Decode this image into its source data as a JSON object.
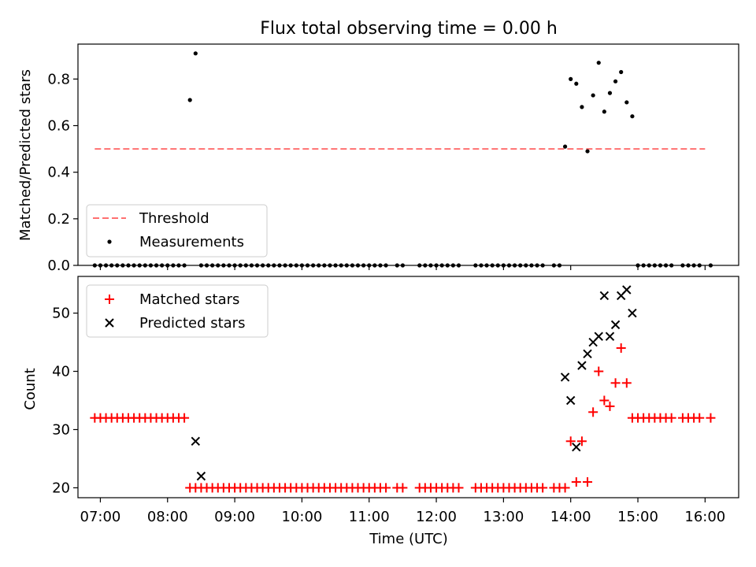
{
  "chart_data": [
    {
      "type": "scatter",
      "title": "Flux total observing time = 0.00 h",
      "xlabel": "",
      "ylabel": "Matched/Predicted stars",
      "ylim": [
        0.0,
        0.95
      ],
      "yticks": [
        0.0,
        0.2,
        0.4,
        0.6,
        0.8
      ],
      "ytick_labels": [
        "0.0",
        "0.2",
        "0.4",
        "0.6",
        "0.8"
      ],
      "xlim": [
        "06:40",
        "16:30"
      ],
      "legend_position": "lower-left",
      "series": [
        {
          "name": "Threshold",
          "kind": "line",
          "style": "dashed",
          "color": "#ff7070",
          "x": [
            "06:55",
            "16:00"
          ],
          "y": [
            0.5,
            0.5
          ]
        },
        {
          "name": "Measurements",
          "kind": "points",
          "marker": "dot",
          "color": "#000000",
          "x": [
            "06:55",
            "07:00",
            "07:05",
            "07:10",
            "07:15",
            "07:20",
            "07:25",
            "07:30",
            "07:35",
            "07:40",
            "07:45",
            "07:50",
            "07:55",
            "08:00",
            "08:05",
            "08:10",
            "08:15",
            "08:20",
            "08:25",
            "08:30",
            "08:35",
            "08:40",
            "08:45",
            "08:50",
            "08:55",
            "09:00",
            "09:05",
            "09:10",
            "09:15",
            "09:20",
            "09:25",
            "09:30",
            "09:35",
            "09:40",
            "09:45",
            "09:50",
            "09:55",
            "10:00",
            "10:05",
            "10:10",
            "10:15",
            "10:20",
            "10:25",
            "10:30",
            "10:35",
            "10:40",
            "10:45",
            "10:50",
            "10:55",
            "11:00",
            "11:05",
            "11:10",
            "11:15",
            "11:25",
            "11:30",
            "11:45",
            "11:50",
            "11:55",
            "12:00",
            "12:05",
            "12:10",
            "12:15",
            "12:20",
            "12:35",
            "12:40",
            "12:45",
            "12:50",
            "12:55",
            "13:00",
            "13:05",
            "13:10",
            "13:15",
            "13:20",
            "13:25",
            "13:30",
            "13:35",
            "13:45",
            "13:50",
            "13:55",
            "14:00",
            "14:05",
            "14:10",
            "14:15",
            "14:20",
            "14:25",
            "14:30",
            "14:35",
            "14:40",
            "14:45",
            "14:50",
            "14:55",
            "15:00",
            "15:05",
            "15:10",
            "15:15",
            "15:20",
            "15:25",
            "15:30",
            "15:40",
            "15:45",
            "15:50",
            "15:55",
            "16:05"
          ],
          "y": [
            0,
            0,
            0,
            0,
            0,
            0,
            0,
            0,
            0,
            0,
            0,
            0,
            0,
            0,
            0,
            0,
            0,
            0.71,
            0.91,
            0,
            0,
            0,
            0,
            0,
            0,
            0,
            0,
            0,
            0,
            0,
            0,
            0,
            0,
            0,
            0,
            0,
            0,
            0,
            0,
            0,
            0,
            0,
            0,
            0,
            0,
            0,
            0,
            0,
            0,
            0,
            0,
            0,
            0,
            0,
            0,
            0,
            0,
            0,
            0,
            0,
            0,
            0,
            0,
            0,
            0,
            0,
            0,
            0,
            0,
            0,
            0,
            0,
            0,
            0,
            0,
            0,
            0,
            0,
            0.51,
            0.8,
            0.78,
            0.68,
            0.49,
            0.73,
            0.87,
            0.66,
            0.74,
            0.79,
            0.83,
            0.7,
            0.64,
            0,
            0,
            0,
            0,
            0,
            0,
            0,
            0,
            0,
            0,
            0,
            0
          ]
        }
      ]
    },
    {
      "type": "scatter",
      "title": "",
      "xlabel": "Time (UTC)",
      "ylabel": "Count",
      "ylim": [
        18.3,
        56.3
      ],
      "yticks": [
        20,
        30,
        40,
        50
      ],
      "ytick_labels": [
        "20",
        "30",
        "40",
        "50"
      ],
      "xlim": [
        "06:40",
        "16:30"
      ],
      "xticks": [
        "07:00",
        "08:00",
        "09:00",
        "10:00",
        "11:00",
        "12:00",
        "13:00",
        "14:00",
        "15:00",
        "16:00"
      ],
      "xtick_labels": [
        "07:00",
        "08:00",
        "09:00",
        "10:00",
        "11:00",
        "12:00",
        "13:00",
        "14:00",
        "15:00",
        "16:00"
      ],
      "legend_position": "upper-left",
      "series": [
        {
          "name": "Matched stars",
          "kind": "points",
          "marker": "plus",
          "color": "#ff0000",
          "x": [
            "06:55",
            "07:00",
            "07:05",
            "07:10",
            "07:15",
            "07:20",
            "07:25",
            "07:30",
            "07:35",
            "07:40",
            "07:45",
            "07:50",
            "07:55",
            "08:00",
            "08:05",
            "08:10",
            "08:15",
            "08:20",
            "08:25",
            "08:30",
            "08:35",
            "08:40",
            "08:45",
            "08:50",
            "08:55",
            "09:00",
            "09:05",
            "09:10",
            "09:15",
            "09:20",
            "09:25",
            "09:30",
            "09:35",
            "09:40",
            "09:45",
            "09:50",
            "09:55",
            "10:00",
            "10:05",
            "10:10",
            "10:15",
            "10:20",
            "10:25",
            "10:30",
            "10:35",
            "10:40",
            "10:45",
            "10:50",
            "10:55",
            "11:00",
            "11:05",
            "11:10",
            "11:15",
            "11:25",
            "11:30",
            "11:45",
            "11:50",
            "11:55",
            "12:00",
            "12:05",
            "12:10",
            "12:15",
            "12:20",
            "12:35",
            "12:40",
            "12:45",
            "12:50",
            "12:55",
            "13:00",
            "13:05",
            "13:10",
            "13:15",
            "13:20",
            "13:25",
            "13:30",
            "13:35",
            "13:45",
            "13:50",
            "13:55",
            "14:00",
            "14:05",
            "14:10",
            "14:15",
            "14:20",
            "14:25",
            "14:30",
            "14:35",
            "14:40",
            "14:45",
            "14:50",
            "14:55",
            "15:00",
            "15:05",
            "15:10",
            "15:15",
            "15:20",
            "15:25",
            "15:30",
            "15:40",
            "15:45",
            "15:50",
            "15:55",
            "16:05"
          ],
          "y": [
            32,
            32,
            32,
            32,
            32,
            32,
            32,
            32,
            32,
            32,
            32,
            32,
            32,
            32,
            32,
            32,
            32,
            20,
            20,
            20,
            20,
            20,
            20,
            20,
            20,
            20,
            20,
            20,
            20,
            20,
            20,
            20,
            20,
            20,
            20,
            20,
            20,
            20,
            20,
            20,
            20,
            20,
            20,
            20,
            20,
            20,
            20,
            20,
            20,
            20,
            20,
            20,
            20,
            20,
            20,
            20,
            20,
            20,
            20,
            20,
            20,
            20,
            20,
            20,
            20,
            20,
            20,
            20,
            20,
            20,
            20,
            20,
            20,
            20,
            20,
            20,
            20,
            20,
            20,
            28,
            21,
            28,
            21,
            33,
            40,
            35,
            34,
            38,
            44,
            38,
            32,
            32,
            32,
            32,
            32,
            32,
            32,
            32,
            32,
            32,
            32,
            32,
            32
          ]
        },
        {
          "name": "Predicted stars",
          "kind": "points",
          "marker": "x",
          "color": "#000000",
          "x": [
            "08:25",
            "08:30",
            "13:55",
            "14:00",
            "14:05",
            "14:10",
            "14:15",
            "14:20",
            "14:25",
            "14:30",
            "14:35",
            "14:40",
            "14:45",
            "14:50",
            "14:55"
          ],
          "y": [
            28,
            22,
            39,
            35,
            27,
            41,
            43,
            45,
            46,
            53,
            46,
            48,
            53,
            54,
            50
          ]
        }
      ]
    }
  ]
}
